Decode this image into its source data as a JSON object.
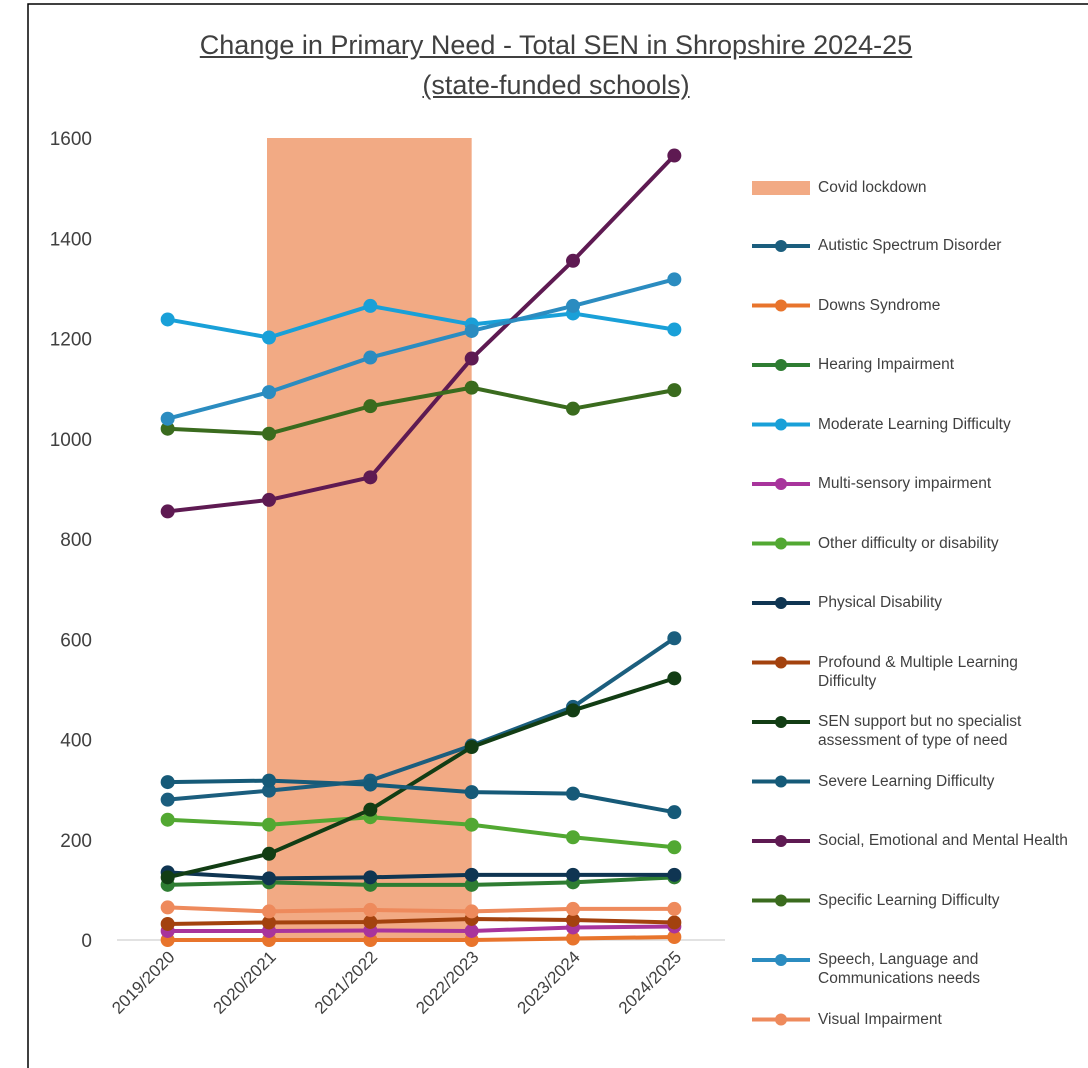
{
  "chart_data": {
    "type": "line",
    "title": "Change in Primary Need - Total SEN in Shropshire 2024-25",
    "subtitle": "(state-funded schools)",
    "categories": [
      "2019/2020",
      "2020/2021",
      "2021/2022",
      "2022/2023",
      "2023/2024",
      "2024/2025"
    ],
    "ylim": [
      0,
      1600
    ],
    "yticks": [
      0,
      200,
      400,
      600,
      800,
      1000,
      1200,
      1400,
      1600
    ],
    "grid": false,
    "legend": "right",
    "highlight": {
      "name": "Covid lockdown",
      "color": "#f2aa84",
      "from": "2020/2021",
      "to": "2022/2023",
      "value": 1600
    },
    "series": [
      {
        "name": "Autistic Spectrum Disorder",
        "color": "#1b5e7e",
        "values": [
          280,
          298,
          318,
          388,
          465,
          602
        ]
      },
      {
        "name": "Downs Syndrome",
        "color": "#e8742c",
        "values": [
          0,
          0,
          0,
          0,
          3,
          6
        ]
      },
      {
        "name": "Hearing Impairment",
        "color": "#2e7d32",
        "values": [
          110,
          115,
          110,
          110,
          115,
          125
        ]
      },
      {
        "name": "Moderate Learning Difficulty",
        "color": "#19a0d8",
        "values": [
          1238,
          1202,
          1265,
          1228,
          1250,
          1218
        ]
      },
      {
        "name": "Multi-sensory impairment",
        "color": "#a8349c",
        "values": [
          18,
          18,
          19,
          18,
          25,
          27
        ]
      },
      {
        "name": "Other difficulty or disability",
        "color": "#52a832",
        "values": [
          240,
          230,
          245,
          230,
          205,
          185
        ]
      },
      {
        "name": "Physical Disability",
        "color": "#0f3552",
        "values": [
          135,
          123,
          125,
          130,
          130,
          130
        ]
      },
      {
        "name": "Profound & Multiple Learning Difficulty",
        "color": "#a3420e",
        "values": [
          32,
          35,
          36,
          42,
          40,
          35
        ]
      },
      {
        "name": "SEN support but no specialist assessment of type of need",
        "color": "#123d14",
        "values": [
          125,
          172,
          260,
          385,
          458,
          522
        ]
      },
      {
        "name": "Severe Learning Difficulty",
        "color": "#165a78",
        "values": [
          315,
          318,
          310,
          295,
          292,
          255
        ]
      },
      {
        "name": "Social, Emotional and Mental Health",
        "color": "#5e1a52",
        "values": [
          855,
          878,
          923,
          1160,
          1355,
          1565
        ]
      },
      {
        "name": "Specific Learning Difficulty",
        "color": "#3a6b1e",
        "values": [
          1020,
          1010,
          1065,
          1102,
          1060,
          1097
        ]
      },
      {
        "name": "Speech, Language and Communications needs",
        "color": "#2b8cc0",
        "values": [
          1040,
          1093,
          1162,
          1215,
          1265,
          1318
        ]
      },
      {
        "name": "Visual Impairment",
        "color": "#ee8a5c",
        "values": [
          65,
          57,
          60,
          57,
          62,
          62
        ]
      }
    ]
  }
}
